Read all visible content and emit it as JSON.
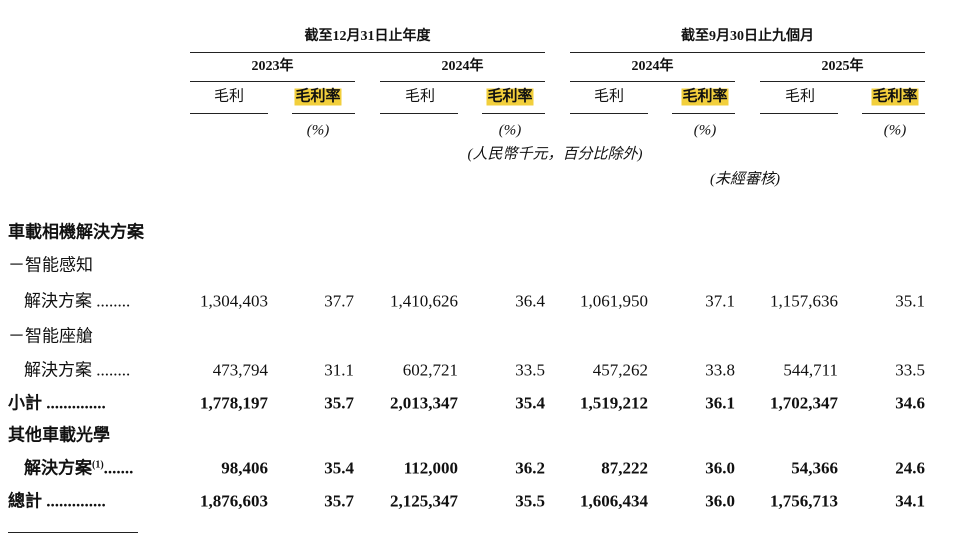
{
  "header": {
    "groups": [
      "截至12月31日止年度",
      "截至9月30日止九個月"
    ],
    "years": [
      "2023年",
      "2024年",
      "2024年",
      "2025年"
    ],
    "columns": [
      "毛利",
      "毛利率",
      "毛利",
      "毛利率",
      "毛利",
      "毛利率",
      "毛利",
      "毛利率"
    ],
    "units": [
      "(%)",
      "(%)",
      "(%)",
      "(%)"
    ],
    "currency_note": "(人民幣千元，百分比除外)",
    "audit_note": "(未經審核)"
  },
  "rows": [
    {
      "label": "車載相機解決方案",
      "bold": true
    },
    {
      "label": "－智能感知",
      "bold": false
    },
    {
      "label": "解決方案 ........",
      "bold": false,
      "values": [
        "1,304,403",
        "37.7",
        "1,410,626",
        "36.4",
        "1,061,950",
        "37.1",
        "1,157,636",
        "35.1"
      ]
    },
    {
      "label": "－智能座艙",
      "bold": false
    },
    {
      "label": "解決方案 ........",
      "bold": false,
      "values": [
        "473,794",
        "31.1",
        "602,721",
        "33.5",
        "457,262",
        "33.8",
        "544,711",
        "33.5"
      ]
    },
    {
      "label": "小計 ..............",
      "bold": true,
      "values": [
        "1,778,197",
        "35.7",
        "2,013,347",
        "35.4",
        "1,519,212",
        "36.1",
        "1,702,347",
        "34.6"
      ]
    },
    {
      "label": "其他車載光學",
      "bold": true
    },
    {
      "label": "解決方案",
      "sup": "(1)",
      "leader": ".......",
      "bold": true,
      "values": [
        "98,406",
        "35.4",
        "112,000",
        "36.2",
        "87,222",
        "36.0",
        "54,366",
        "24.6"
      ]
    },
    {
      "label": "總計 ..............",
      "bold": true,
      "values": [
        "1,876,603",
        "35.7",
        "2,125,347",
        "35.5",
        "1,606,434",
        "36.0",
        "1,756,713",
        "34.1"
      ]
    }
  ]
}
